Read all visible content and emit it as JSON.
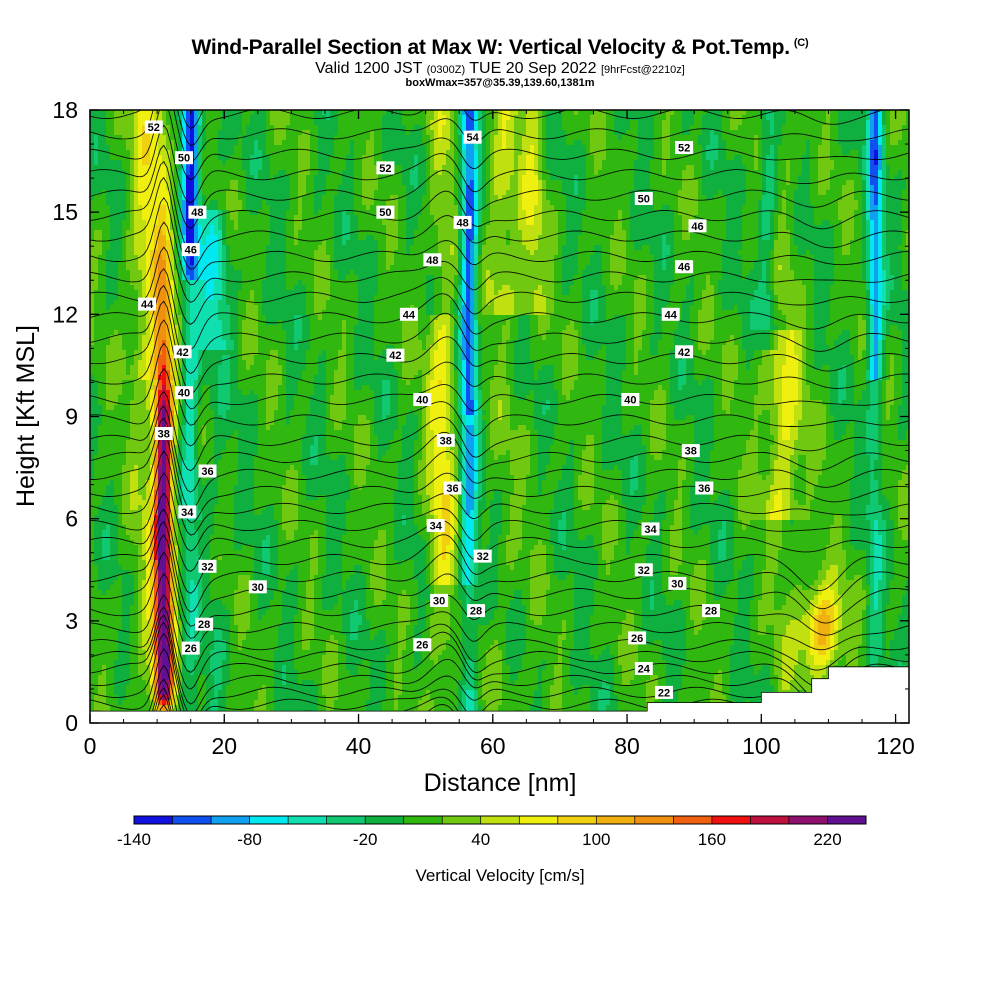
{
  "title": {
    "main": "Wind-Parallel Section at Max W: Vertical Velocity & Pot.Temp.",
    "copyright": "(C)",
    "valid_prefix": "Valid 1200 JST",
    "utc": "(0300Z)",
    "valid_date": "TUE 20 Sep 2022",
    "forecast": "[9hrFcst@2210z]",
    "box_info": "boxWmax=357@35.39,139.60,1381m"
  },
  "chart_data": {
    "type": "heatmap",
    "xlabel": "Distance [nm]",
    "ylabel": "Height [Kft MSL]",
    "xlim": [
      0,
      122
    ],
    "ylim": [
      0,
      18
    ],
    "x_ticks": [
      "0",
      "20",
      "40",
      "60",
      "80",
      "100",
      "120"
    ],
    "y_ticks": [
      "0",
      "3",
      "6",
      "9",
      "12",
      "15",
      "18"
    ],
    "colorbar": {
      "label": "Vertical Velocity [cm/s]",
      "levels": [
        -140,
        -120,
        -100,
        -80,
        -60,
        -40,
        -20,
        0,
        20,
        40,
        60,
        80,
        100,
        120,
        140,
        160,
        180,
        200,
        220,
        240
      ],
      "tick_labels": [
        "-140",
        "-80",
        "-20",
        "40",
        "100",
        "160",
        "220"
      ],
      "colors": [
        "#1010e0",
        "#1050f0",
        "#10a0f0",
        "#00e8f0",
        "#10e0b0",
        "#10c870",
        "#10b040",
        "#30b810",
        "#70c810",
        "#c0e010",
        "#f0f010",
        "#f0d010",
        "#f0b010",
        "#f09010",
        "#f06010",
        "#f01010",
        "#c01040",
        "#901070",
        "#601090"
      ]
    },
    "updraft_bands": [
      {
        "x": 11,
        "max": 220
      },
      {
        "x": 53,
        "max": 80
      },
      {
        "x": 103,
        "max": 80
      },
      {
        "x": 109,
        "max": 120
      }
    ],
    "downdraft_bands": [
      {
        "x": 15,
        "min": -120
      },
      {
        "x": 56.5,
        "min": -120
      },
      {
        "x": 117,
        "min": -100
      }
    ],
    "theta_levels": [
      22,
      24,
      26,
      28,
      30,
      32,
      34,
      36,
      38,
      40,
      42,
      44,
      46,
      48,
      50,
      52,
      54
    ],
    "contour_labels": [
      {
        "text": "52",
        "x": 9.5,
        "y": 17.5
      },
      {
        "text": "50",
        "x": 14,
        "y": 16.6
      },
      {
        "text": "48",
        "x": 16,
        "y": 15.0
      },
      {
        "text": "46",
        "x": 15,
        "y": 13.9
      },
      {
        "text": "44",
        "x": 8.5,
        "y": 12.3
      },
      {
        "text": "42",
        "x": 13.8,
        "y": 10.9
      },
      {
        "text": "40",
        "x": 14,
        "y": 9.7
      },
      {
        "text": "38",
        "x": 11,
        "y": 8.5
      },
      {
        "text": "36",
        "x": 17.5,
        "y": 7.4
      },
      {
        "text": "34",
        "x": 14.5,
        "y": 6.2
      },
      {
        "text": "32",
        "x": 17.5,
        "y": 4.6
      },
      {
        "text": "30",
        "x": 25,
        "y": 4.0
      },
      {
        "text": "28",
        "x": 17,
        "y": 2.9
      },
      {
        "text": "26",
        "x": 15,
        "y": 2.2
      },
      {
        "text": "54",
        "x": 57,
        "y": 17.2
      },
      {
        "text": "52",
        "x": 44,
        "y": 16.3
      },
      {
        "text": "50",
        "x": 44,
        "y": 15.0
      },
      {
        "text": "48",
        "x": 55.5,
        "y": 14.7
      },
      {
        "text": "48",
        "x": 51,
        "y": 13.6
      },
      {
        "text": "44",
        "x": 47.5,
        "y": 12.0
      },
      {
        "text": "42",
        "x": 45.5,
        "y": 10.8
      },
      {
        "text": "40",
        "x": 49.5,
        "y": 9.5
      },
      {
        "text": "38",
        "x": 53,
        "y": 8.3
      },
      {
        "text": "36",
        "x": 54,
        "y": 6.9
      },
      {
        "text": "34",
        "x": 51.5,
        "y": 5.8
      },
      {
        "text": "32",
        "x": 58.5,
        "y": 4.9
      },
      {
        "text": "30",
        "x": 52,
        "y": 3.6
      },
      {
        "text": "28",
        "x": 57.5,
        "y": 3.3
      },
      {
        "text": "26",
        "x": 49.5,
        "y": 2.3
      },
      {
        "text": "52",
        "x": 88.5,
        "y": 16.9
      },
      {
        "text": "50",
        "x": 82.5,
        "y": 15.4
      },
      {
        "text": "46",
        "x": 90.5,
        "y": 14.6
      },
      {
        "text": "46",
        "x": 88.5,
        "y": 13.4
      },
      {
        "text": "44",
        "x": 86.5,
        "y": 12.0
      },
      {
        "text": "42",
        "x": 88.5,
        "y": 10.9
      },
      {
        "text": "40",
        "x": 80.5,
        "y": 9.5
      },
      {
        "text": "38",
        "x": 89.5,
        "y": 8.0
      },
      {
        "text": "36",
        "x": 91.5,
        "y": 6.9
      },
      {
        "text": "34",
        "x": 83.5,
        "y": 5.7
      },
      {
        "text": "32",
        "x": 82.5,
        "y": 4.5
      },
      {
        "text": "30",
        "x": 87.5,
        "y": 4.1
      },
      {
        "text": "28",
        "x": 92.5,
        "y": 3.3
      },
      {
        "text": "26",
        "x": 81.5,
        "y": 2.5
      },
      {
        "text": "24",
        "x": 82.5,
        "y": 1.6
      },
      {
        "text": "22",
        "x": 85.5,
        "y": 0.9
      }
    ]
  }
}
